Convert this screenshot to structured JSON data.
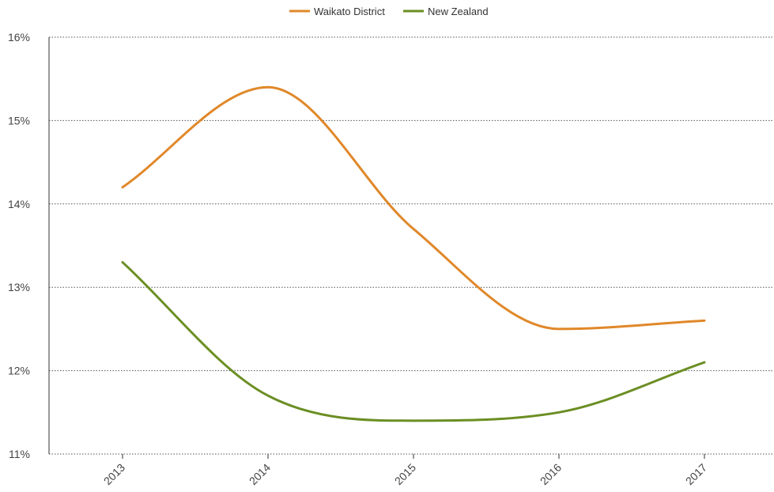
{
  "chart_data": {
    "type": "line",
    "x": [
      "2013",
      "2014",
      "2015",
      "2016",
      "2017"
    ],
    "series": [
      {
        "name": "Waikato District",
        "color": "#e0882a",
        "values": [
          14.2,
          15.4,
          13.7,
          12.5,
          12.6
        ]
      },
      {
        "name": "New Zealand",
        "color": "#6b8e23",
        "values": [
          13.3,
          11.7,
          11.4,
          11.5,
          12.1
        ]
      }
    ],
    "y_ticks": [
      "11%",
      "12%",
      "13%",
      "14%",
      "15%",
      "16%"
    ],
    "ylim": [
      11,
      16
    ],
    "grid": true,
    "legend_position": "top-center",
    "title": "",
    "xlabel": "",
    "ylabel": ""
  }
}
